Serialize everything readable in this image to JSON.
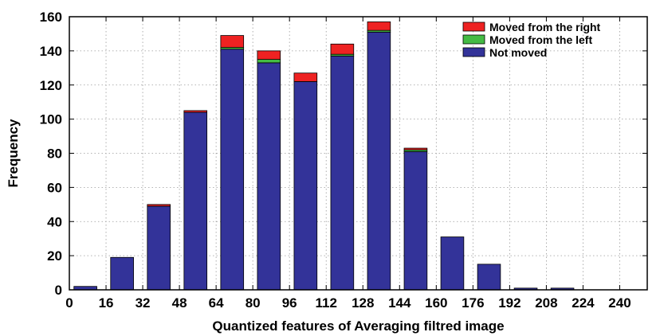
{
  "chart_data": {
    "type": "bar",
    "stacked": true,
    "xlabel": "Quantized features of Averaging filtred image",
    "ylabel": "Frequency",
    "xlim": [
      0,
      252
    ],
    "ylim": [
      0,
      160
    ],
    "xticks": [
      0,
      16,
      32,
      48,
      64,
      80,
      96,
      112,
      128,
      144,
      160,
      176,
      192,
      208,
      224,
      240
    ],
    "yticks": [
      0,
      20,
      40,
      60,
      80,
      100,
      120,
      140,
      160
    ],
    "grid": true,
    "legend_position": "top-right",
    "x": [
      7,
      23,
      39,
      55,
      71,
      87,
      103,
      119,
      135,
      151,
      167,
      183,
      199,
      215,
      231,
      247
    ],
    "series": [
      {
        "name": "Not moved",
        "color": "#333399",
        "values": [
          2,
          19,
          49,
          104,
          141,
          133,
          122,
          137,
          151,
          81,
          31,
          15,
          1,
          1,
          0,
          0
        ]
      },
      {
        "name": "Moved from the left",
        "color": "#44bb44",
        "values": [
          0,
          0,
          0,
          0,
          1,
          2,
          0,
          1,
          1,
          1,
          0,
          0,
          0,
          0,
          0,
          0
        ]
      },
      {
        "name": "Moved from the right",
        "color": "#ee2222",
        "values": [
          0,
          0,
          1,
          1,
          7,
          5,
          5,
          6,
          5,
          1,
          0,
          0,
          0,
          0,
          0,
          0
        ]
      }
    ],
    "legend_order": [
      "Moved from the right",
      "Moved from the left",
      "Not moved"
    ]
  }
}
